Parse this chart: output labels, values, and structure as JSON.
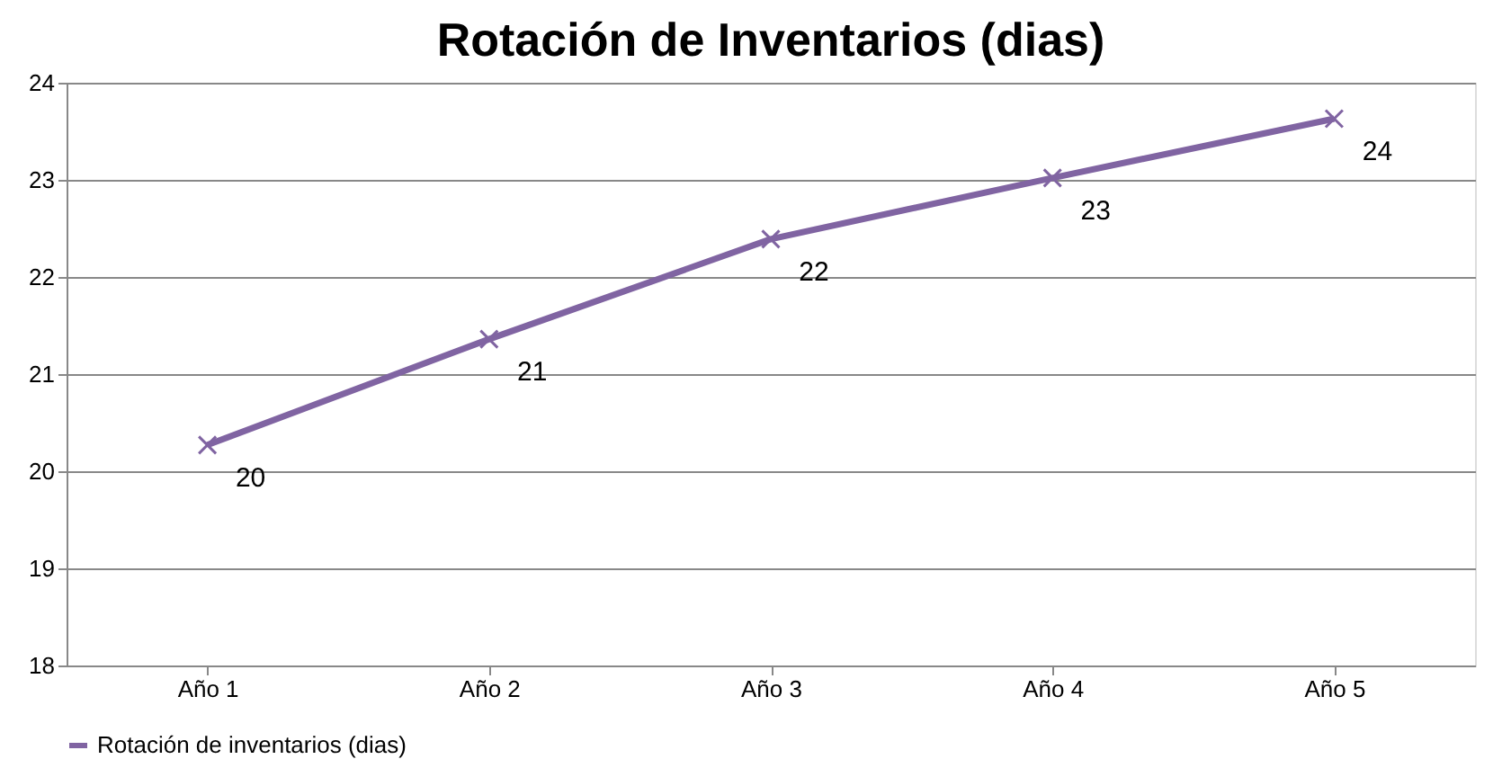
{
  "chart_data": {
    "type": "line",
    "title": "Rotación de Inventarios (dias)",
    "categories": [
      "Año 1",
      "Año 2",
      "Año 3",
      "Año 4",
      "Año 5"
    ],
    "series": [
      {
        "name": "Rotación de inventarios (dias)",
        "color": "#8064a2",
        "values": [
          20.27,
          21.36,
          22.39,
          23.02,
          23.63
        ],
        "value_labels": [
          "20",
          "21",
          "22",
          "23",
          "24"
        ]
      }
    ],
    "ylim": [
      18,
      24
    ],
    "yticks": [
      18,
      19,
      20,
      21,
      22,
      23,
      24
    ],
    "grid": "y",
    "legend": "bottom",
    "marker": "cross",
    "line_style": "solid"
  }
}
